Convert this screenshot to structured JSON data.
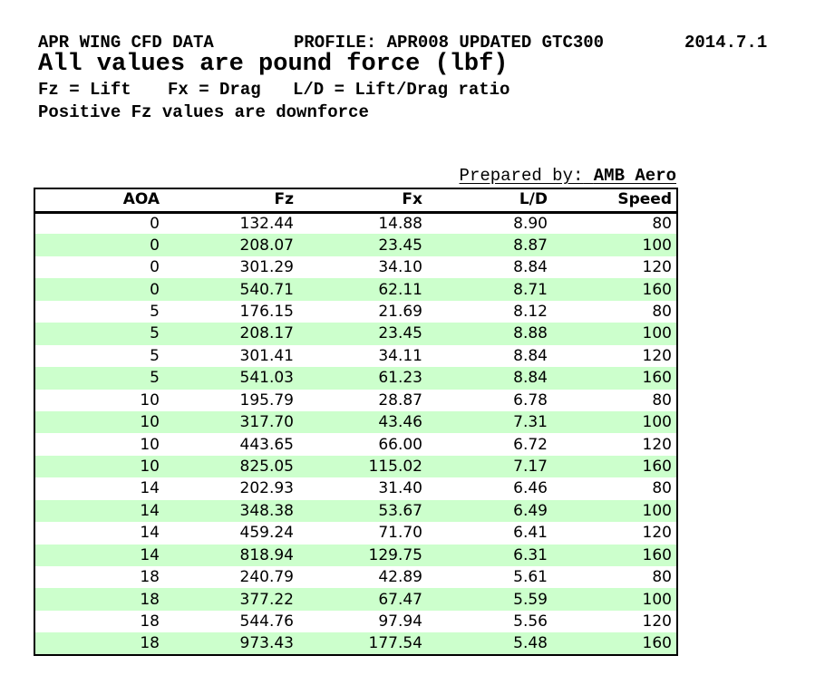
{
  "header": {
    "title_left": "APR WING CFD DATA",
    "title_middle": "PROFILE: APR008 UPDATED GTC300",
    "title_right": "2014.7.1",
    "subtitle": "All values are pound force (lbf)",
    "legend_fz": "Fz = Lift",
    "legend_fx": "Fx = Drag",
    "legend_ld": "L/D = Lift/Drag ratio",
    "note": "Positive Fz values are downforce"
  },
  "prepared_by": {
    "label": "Prepared by:",
    "value": "AMB Aero"
  },
  "table": {
    "columns": [
      "AOA",
      "Fz",
      "Fx",
      "L/D",
      "Speed"
    ],
    "rows": [
      [
        "0",
        "132.44",
        "14.88",
        "8.90",
        "80"
      ],
      [
        "0",
        "208.07",
        "23.45",
        "8.87",
        "100"
      ],
      [
        "0",
        "301.29",
        "34.10",
        "8.84",
        "120"
      ],
      [
        "0",
        "540.71",
        "62.11",
        "8.71",
        "160"
      ],
      [
        "5",
        "176.15",
        "21.69",
        "8.12",
        "80"
      ],
      [
        "5",
        "208.17",
        "23.45",
        "8.88",
        "100"
      ],
      [
        "5",
        "301.41",
        "34.11",
        "8.84",
        "120"
      ],
      [
        "5",
        "541.03",
        "61.23",
        "8.84",
        "160"
      ],
      [
        "10",
        "195.79",
        "28.87",
        "6.78",
        "80"
      ],
      [
        "10",
        "317.70",
        "43.46",
        "7.31",
        "100"
      ],
      [
        "10",
        "443.65",
        "66.00",
        "6.72",
        "120"
      ],
      [
        "10",
        "825.05",
        "115.02",
        "7.17",
        "160"
      ],
      [
        "14",
        "202.93",
        "31.40",
        "6.46",
        "80"
      ],
      [
        "14",
        "348.38",
        "53.67",
        "6.49",
        "100"
      ],
      [
        "14",
        "459.24",
        "71.70",
        "6.41",
        "120"
      ],
      [
        "14",
        "818.94",
        "129.75",
        "6.31",
        "160"
      ],
      [
        "18",
        "240.79",
        "42.89",
        "5.61",
        "80"
      ],
      [
        "18",
        "377.22",
        "67.47",
        "5.59",
        "100"
      ],
      [
        "18",
        "544.76",
        "97.94",
        "5.56",
        "120"
      ],
      [
        "18",
        "973.43",
        "177.54",
        "5.48",
        "160"
      ]
    ]
  },
  "colors": {
    "stripe_green": "#ccffcc",
    "border": "#000000",
    "background": "#ffffff",
    "text": "#000000"
  }
}
